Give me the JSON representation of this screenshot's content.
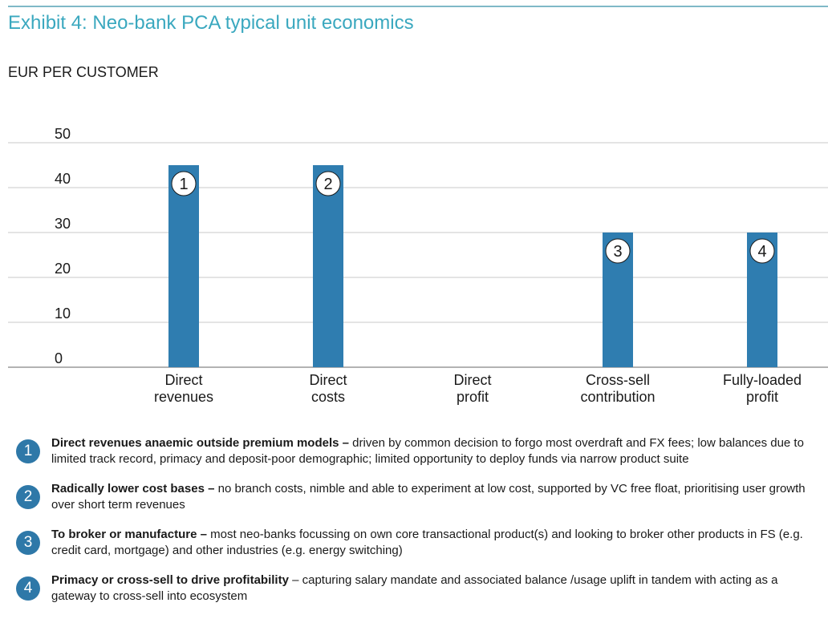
{
  "title": "Exhibit 4: Neo-bank PCA typical unit economics",
  "colors": {
    "bar": "#2f7db0",
    "title": "#3aa8bf",
    "badge": "#2e78a8",
    "grid": "#c8c8c8"
  },
  "chart_data": {
    "type": "bar",
    "ylabel": "EUR PER CUSTOMER",
    "ylim": [
      0,
      50
    ],
    "yticks": [
      0,
      10,
      20,
      30,
      40,
      50
    ],
    "grid": true,
    "categories": [
      "Direct revenues",
      "Direct costs",
      "Direct profit",
      "Cross-sell contribution",
      "Fully-loaded profit"
    ],
    "category_lines": [
      [
        "Direct",
        "revenues"
      ],
      [
        "Direct",
        "costs"
      ],
      [
        "Direct",
        "profit"
      ],
      [
        "Cross-sell",
        "contribution"
      ],
      [
        "Fully-loaded",
        "profit"
      ]
    ],
    "values": [
      45,
      45,
      0,
      30,
      30
    ],
    "bar_markers": [
      "1",
      "2",
      "",
      "3",
      "4"
    ]
  },
  "notes": [
    {
      "num": "1",
      "bold": "Direct revenues anaemic outside premium models –",
      "text": " driven by common decision to forgo most overdraft and FX fees; low balances due to limited track record, primacy and deposit-poor demographic; limited opportunity to deploy funds via narrow product suite"
    },
    {
      "num": "2",
      "bold": "Radically lower cost bases –",
      "text": " no branch costs, nimble and able to experiment at low cost, supported by VC free float, prioritising user growth over short term revenues"
    },
    {
      "num": "3",
      "bold": "To broker or manufacture –",
      "text": " most neo-banks focussing on own core transactional product(s) and looking to broker other products in FS (e.g. credit card, mortgage) and other industries (e.g. energy switching)"
    },
    {
      "num": "4",
      "bold": "Primacy or cross-sell to drive profitability",
      "text": " – capturing salary mandate and associated balance /usage uplift in tandem with acting as a gateway to cross-sell into ecosystem"
    }
  ]
}
